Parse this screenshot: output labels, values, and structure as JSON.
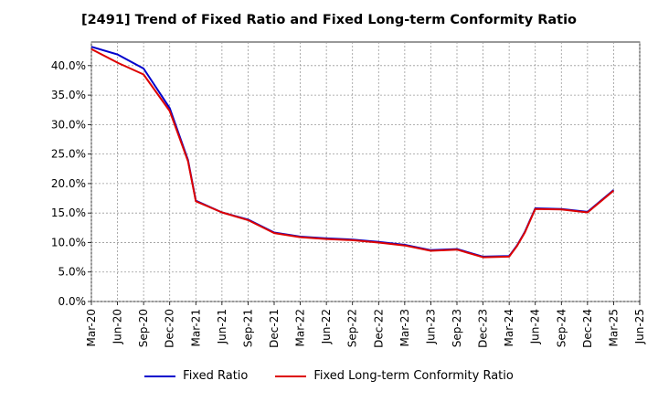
{
  "chart_data": {
    "type": "line",
    "title": "[2491]  Trend of Fixed Ratio and Fixed Long-term Conformity Ratio",
    "xlabel": "",
    "ylabel": "",
    "ylim": [
      0,
      0.44
    ],
    "yticks": [
      0,
      0.05,
      0.1,
      0.15,
      0.2,
      0.25,
      0.3,
      0.35,
      0.4
    ],
    "ytick_labels": [
      "0.0%",
      "5.0%",
      "10.0%",
      "15.0%",
      "20.0%",
      "25.0%",
      "30.0%",
      "35.0%",
      "40.0%"
    ],
    "x_tick_labels": [
      "Mar-20",
      "Jun-20",
      "Sep-20",
      "Dec-20",
      "Mar-21",
      "Jun-21",
      "Sep-21",
      "Dec-21",
      "Mar-22",
      "Jun-22",
      "Sep-22",
      "Dec-22",
      "Mar-23",
      "Jun-23",
      "Sep-23",
      "Dec-23",
      "Mar-24",
      "Jun-24",
      "Sep-24",
      "Dec-24",
      "Mar-25",
      "Jun-25"
    ],
    "x": [
      0,
      1,
      2,
      3,
      3.7,
      4,
      5,
      6,
      7,
      8,
      9,
      10,
      11,
      12,
      13,
      14,
      15,
      16,
      16.3,
      16.6,
      17,
      18,
      19,
      20
    ],
    "grid": true,
    "legend_position": "bottom",
    "series": [
      {
        "name": "Fixed Ratio",
        "color": "#0000cc",
        "values": [
          0.432,
          0.419,
          0.395,
          0.328,
          0.24,
          0.171,
          0.151,
          0.139,
          0.117,
          0.11,
          0.107,
          0.105,
          0.101,
          0.096,
          0.087,
          0.089,
          0.076,
          0.077,
          0.095,
          0.118,
          0.158,
          0.157,
          0.152,
          0.189
        ]
      },
      {
        "name": "Fixed Long-term Conformity Ratio",
        "color": "#dd0000",
        "values": [
          0.428,
          0.405,
          0.385,
          0.323,
          0.238,
          0.17,
          0.151,
          0.138,
          0.116,
          0.109,
          0.106,
          0.104,
          0.1,
          0.095,
          0.086,
          0.088,
          0.075,
          0.076,
          0.094,
          0.117,
          0.157,
          0.156,
          0.151,
          0.188
        ]
      }
    ]
  }
}
